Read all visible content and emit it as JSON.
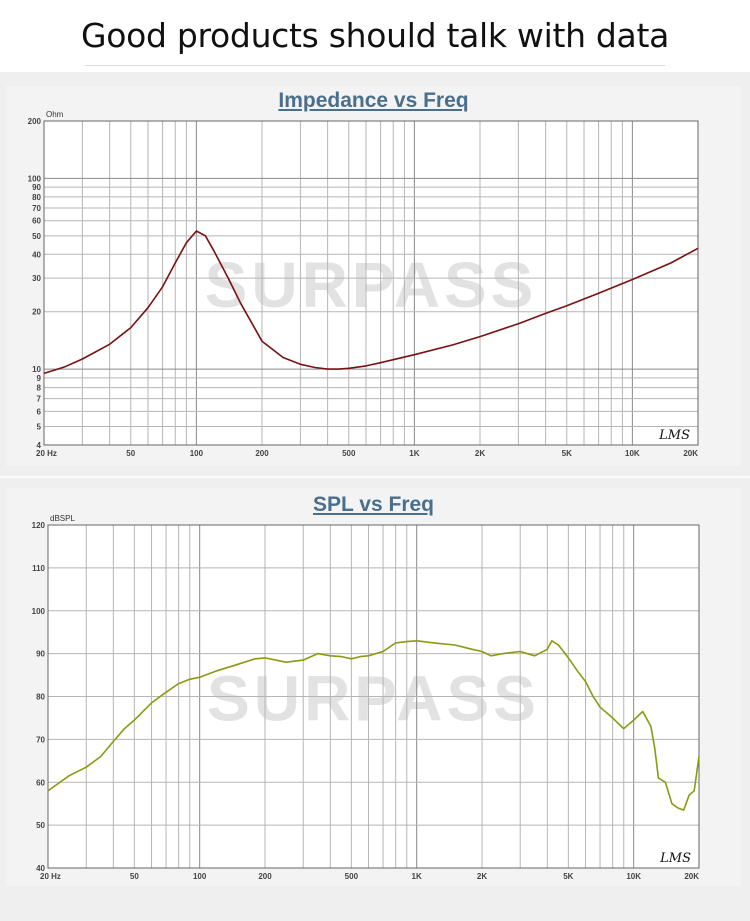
{
  "banner": {
    "title": "Good products should talk with data"
  },
  "watermark": "SURPASS",
  "chart_data": [
    {
      "type": "line",
      "title": "Impedance vs Freq",
      "ylabel": "Ohm",
      "xscale": "log",
      "yscale": "log",
      "xlim": [
        20,
        20000
      ],
      "ylim": [
        4,
        200
      ],
      "grid": true,
      "x_ticks": [
        20,
        50,
        100,
        200,
        500,
        1000,
        2000,
        5000,
        10000,
        20000
      ],
      "x_tick_labels": [
        "20 Hz",
        "50",
        "100",
        "200",
        "500",
        "1K",
        "2K",
        "5K",
        "10K",
        "20K"
      ],
      "y_ticks": [
        4,
        5,
        6,
        7,
        8,
        9,
        10,
        20,
        30,
        40,
        50,
        60,
        70,
        80,
        90,
        100,
        200
      ],
      "y_tick_labels": [
        "4",
        "5",
        "6",
        "7",
        "8",
        "9",
        "10",
        "20",
        "30",
        "40",
        "50",
        "60",
        "70",
        "80",
        "90",
        "100",
        "200"
      ],
      "line_color": "#7a1010",
      "signature": "LMS",
      "series": [
        {
          "x": [
            20,
            25,
            30,
            40,
            50,
            60,
            70,
            80,
            90,
            100,
            110,
            120,
            140,
            160,
            200,
            250,
            300,
            350,
            400,
            450,
            500,
            600,
            700,
            800,
            1000,
            1500,
            2000,
            3000,
            4000,
            5000,
            7000,
            10000,
            15000,
            20000
          ],
          "y": [
            9.5,
            10.3,
            11.3,
            13.5,
            16.5,
            21,
            27,
            36,
            46,
            53,
            50,
            42,
            30,
            22,
            14,
            11.5,
            10.6,
            10.2,
            10.0,
            10.0,
            10.1,
            10.4,
            10.8,
            11.2,
            11.9,
            13.4,
            14.8,
            17.3,
            19.6,
            21.5,
            25,
            29.5,
            36,
            43
          ]
        }
      ]
    },
    {
      "type": "line",
      "title": "SPL vs Freq",
      "ylabel": "dBSPL",
      "xscale": "log",
      "xlim": [
        20,
        20000
      ],
      "ylim": [
        40,
        120
      ],
      "grid": true,
      "x_ticks": [
        20,
        50,
        100,
        200,
        500,
        1000,
        2000,
        5000,
        10000,
        20000
      ],
      "x_tick_labels": [
        "20 Hz",
        "50",
        "100",
        "200",
        "500",
        "1K",
        "2K",
        "5K",
        "10K",
        "20K"
      ],
      "y_ticks": [
        40,
        50,
        60,
        70,
        80,
        90,
        100,
        110,
        120
      ],
      "y_tick_labels": [
        "40",
        "50",
        "60",
        "70",
        "80",
        "90",
        "100",
        "110",
        "120"
      ],
      "line_color": "#8a9a10",
      "signature": "LMS",
      "series": [
        {
          "x": [
            20,
            22,
            25,
            30,
            35,
            40,
            45,
            50,
            60,
            70,
            80,
            90,
            100,
            120,
            150,
            180,
            200,
            250,
            300,
            350,
            400,
            450,
            500,
            550,
            600,
            700,
            800,
            900,
            1000,
            1200,
            1500,
            1800,
            2000,
            2200,
            2500,
            3000,
            3500,
            4000,
            4200,
            4500,
            5000,
            5500,
            6000,
            6500,
            7000,
            8000,
            9000,
            10000,
            11000,
            12000,
            12500,
            13000,
            14000,
            15000,
            16000,
            17000,
            18000,
            19000,
            20000
          ],
          "y": [
            58,
            59.5,
            61.5,
            63.5,
            66,
            69.5,
            72.5,
            74.5,
            78.5,
            81,
            83,
            84,
            84.5,
            86,
            87.5,
            88.8,
            89,
            88,
            88.5,
            90,
            89.5,
            89.3,
            88.8,
            89.3,
            89.5,
            90.5,
            92.5,
            92.8,
            93,
            92.5,
            92,
            91,
            90.5,
            89.5,
            90,
            90.5,
            89.5,
            91,
            93,
            92,
            89,
            86,
            83.5,
            80,
            77.5,
            75,
            72.5,
            74.5,
            76.5,
            73,
            68,
            61,
            60,
            55,
            54,
            53.5,
            57,
            58,
            66
          ]
        }
      ]
    }
  ]
}
